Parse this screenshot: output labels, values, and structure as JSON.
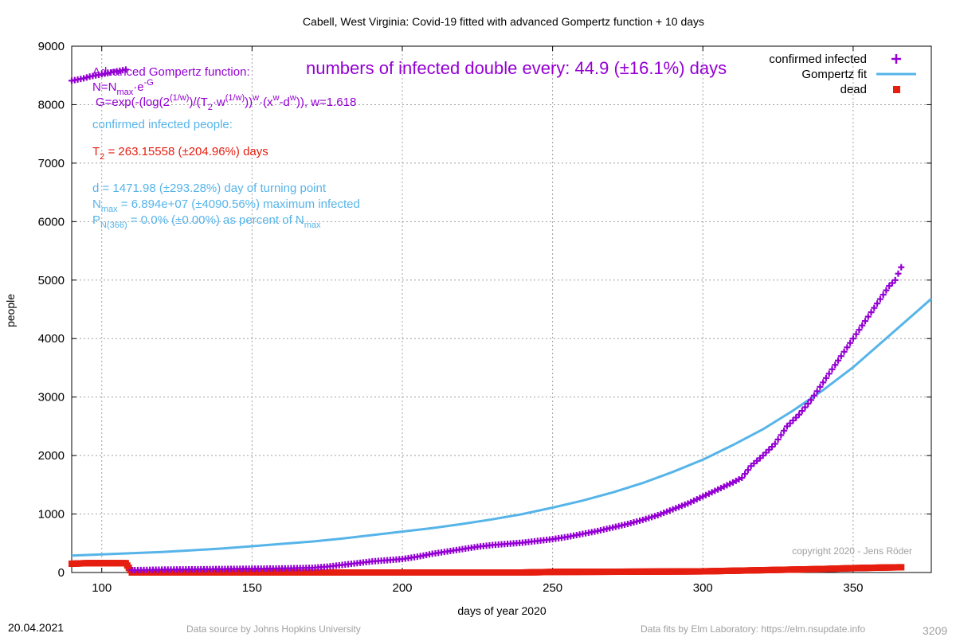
{
  "chart_data": {
    "type": "scatter",
    "title": "Cabell,  West Virginia: Covid-19 fitted with advanced Gompertz function + 10 days",
    "xlabel": "days of year 2020",
    "ylabel": "people",
    "xlim": [
      90,
      376
    ],
    "ylim": [
      0,
      9000
    ],
    "x_ticks": [
      100,
      150,
      200,
      250,
      300,
      350
    ],
    "y_ticks": [
      0,
      1000,
      2000,
      3000,
      4000,
      5000,
      6000,
      7000,
      8000,
      9000
    ],
    "grid": true,
    "legend_position": "top-right",
    "legend": [
      {
        "label": "confirmed infected",
        "color": "#9400d3",
        "marker": "plus"
      },
      {
        "label": "Gompertz fit",
        "color": "#56b4e9",
        "marker": "line"
      },
      {
        "label": "dead",
        "color": "#e51e10",
        "marker": "square"
      }
    ],
    "series": [
      {
        "name": "confirmed infected",
        "color": "#9400d3",
        "points": [
          [
            90,
            8410
          ],
          [
            92,
            8430
          ],
          [
            94,
            8450
          ],
          [
            96,
            8480
          ],
          [
            98,
            8500
          ],
          [
            100,
            8520
          ],
          [
            102,
            8540
          ],
          [
            104,
            8560
          ],
          [
            106,
            8580
          ],
          [
            108,
            8600
          ],
          [
            110,
            40
          ],
          [
            120,
            50
          ],
          [
            130,
            55
          ],
          [
            140,
            60
          ],
          [
            150,
            65
          ],
          [
            160,
            70
          ],
          [
            170,
            80
          ],
          [
            175,
            100
          ],
          [
            180,
            130
          ],
          [
            185,
            160
          ],
          [
            190,
            190
          ],
          [
            195,
            210
          ],
          [
            200,
            230
          ],
          [
            205,
            270
          ],
          [
            210,
            320
          ],
          [
            215,
            360
          ],
          [
            220,
            400
          ],
          [
            225,
            440
          ],
          [
            230,
            470
          ],
          [
            235,
            490
          ],
          [
            240,
            510
          ],
          [
            245,
            540
          ],
          [
            250,
            570
          ],
          [
            255,
            610
          ],
          [
            260,
            660
          ],
          [
            265,
            710
          ],
          [
            270,
            770
          ],
          [
            275,
            830
          ],
          [
            280,
            900
          ],
          [
            285,
            980
          ],
          [
            290,
            1080
          ],
          [
            295,
            1180
          ],
          [
            300,
            1300
          ],
          [
            305,
            1420
          ],
          [
            310,
            1540
          ],
          [
            313,
            1620
          ],
          [
            316,
            1820
          ],
          [
            320,
            2000
          ],
          [
            324,
            2200
          ],
          [
            328,
            2500
          ],
          [
            332,
            2700
          ],
          [
            336,
            2950
          ],
          [
            340,
            3250
          ],
          [
            344,
            3550
          ],
          [
            348,
            3850
          ],
          [
            352,
            4150
          ],
          [
            356,
            4450
          ],
          [
            360,
            4750
          ],
          [
            362,
            4900
          ],
          [
            364,
            5000
          ],
          [
            366,
            5220
          ]
        ]
      },
      {
        "name": "Gompertz fit",
        "color": "#56b4e9",
        "points": [
          [
            90,
            290
          ],
          [
            100,
            310
          ],
          [
            110,
            330
          ],
          [
            120,
            350
          ],
          [
            130,
            380
          ],
          [
            140,
            410
          ],
          [
            150,
            450
          ],
          [
            160,
            490
          ],
          [
            170,
            530
          ],
          [
            180,
            580
          ],
          [
            190,
            640
          ],
          [
            200,
            700
          ],
          [
            210,
            760
          ],
          [
            220,
            830
          ],
          [
            230,
            910
          ],
          [
            240,
            1000
          ],
          [
            250,
            1110
          ],
          [
            260,
            1230
          ],
          [
            270,
            1370
          ],
          [
            280,
            1530
          ],
          [
            290,
            1720
          ],
          [
            300,
            1930
          ],
          [
            310,
            2180
          ],
          [
            320,
            2450
          ],
          [
            330,
            2770
          ],
          [
            340,
            3120
          ],
          [
            350,
            3510
          ],
          [
            360,
            3960
          ],
          [
            370,
            4410
          ],
          [
            376,
            4680
          ]
        ]
      },
      {
        "name": "dead",
        "color": "#e51e10",
        "points": [
          [
            90,
            150
          ],
          [
            95,
            160
          ],
          [
            100,
            160
          ],
          [
            105,
            160
          ],
          [
            108,
            160
          ],
          [
            110,
            0
          ],
          [
            150,
            0
          ],
          [
            200,
            0
          ],
          [
            240,
            0
          ],
          [
            250,
            10
          ],
          [
            280,
            15
          ],
          [
            300,
            20
          ],
          [
            310,
            30
          ],
          [
            320,
            40
          ],
          [
            330,
            50
          ],
          [
            340,
            60
          ],
          [
            350,
            75
          ],
          [
            360,
            85
          ],
          [
            366,
            90
          ]
        ]
      }
    ],
    "annotations": {
      "headline": "numbers of infected double every: 44.9 (±16.1%) days",
      "func_title": "Advanced Gompertz function:",
      "func_line1": "N=N",
      "func_line1_sub": "max",
      "func_line1_rest": "·e",
      "func_line1_sup": "-G",
      "func_line2": "G=exp(-(log(2",
      "func_line2_sup1": "(1/w)",
      "func_line2_mid1": ")/(T",
      "func_line2_sub": "2",
      "func_line2_mid2": "·w",
      "func_line2_sup2": "(1/w)",
      "func_line2_mid3": "))",
      "func_line2_sup3": "w",
      "func_line2_mid4": "·(x",
      "func_line2_sup4": "w",
      "func_line2_mid5": "-d",
      "func_line2_sup5": "w",
      "func_line2_end": ")), w=1.618",
      "confirmed_label": "confirmed infected people:",
      "t2_prefix": "T",
      "t2_sub": "2",
      "t2_value": " = 263.15558 (±204.96%) days",
      "d_line": "d = 1471.98 (±293.28%) day of turning point",
      "nmax_prefix": "N",
      "nmax_sub": "max",
      "nmax_value": " = 6.894e+07 (±4090.56%) maximum infected",
      "p_prefix": "P",
      "p_sub": "N(366)",
      "p_value": " = 0.0% (±0.00%) as percent of N",
      "p_sub2": "max",
      "copyright": "copyright 2020 - Jens Röder"
    },
    "colors": {
      "infected": "#9400d3",
      "fit": "#56b4e9",
      "dead": "#e51e10",
      "headline": "#9400d3",
      "info": "#56b4e9",
      "t2": "#e51e10",
      "grid": "#a0a0a0"
    }
  },
  "footer": {
    "date": "20.04.2021",
    "source": "Data source by Johns Hopkins University",
    "fits": "Data fits by Elm Laboratory: https://elm.nsupdate.info",
    "id": "3209"
  }
}
